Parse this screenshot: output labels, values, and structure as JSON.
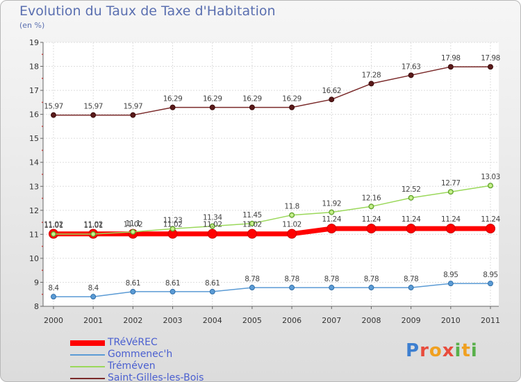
{
  "title": "Evolution du Taux de Taxe d'Habitation",
  "unit_label": "(en %)",
  "logo_text": "Proxiti",
  "chart_data": {
    "type": "line",
    "title": "Evolution du Taux de Taxe d'Habitation",
    "ylabel": "(en %)",
    "xlabel": "",
    "x": [
      "2000",
      "2001",
      "2002",
      "2003",
      "2004",
      "2005",
      "2006",
      "2007",
      "2008",
      "2009",
      "2010",
      "2011"
    ],
    "ylim": [
      8,
      19
    ],
    "yticks": [
      8,
      9,
      10,
      11,
      12,
      13,
      14,
      15,
      16,
      17,
      18,
      19
    ],
    "grid": true,
    "legend_position": "bottom-left",
    "series": [
      {
        "name": "TRéVéREC",
        "color": "#ff0000",
        "values": [
          11.02,
          11.02,
          11.02,
          11.02,
          11.02,
          11.02,
          11.02,
          11.24,
          11.24,
          11.24,
          11.24,
          11.24
        ]
      },
      {
        "name": "Gommenec'h",
        "color": "#5b9bd5",
        "values": [
          8.4,
          8.4,
          8.61,
          8.61,
          8.61,
          8.78,
          8.78,
          8.78,
          8.78,
          8.78,
          8.95,
          8.95
        ]
      },
      {
        "name": "Tréméven",
        "color": "#9ad85a",
        "values": [
          11.01,
          11.01,
          11.1,
          11.23,
          11.34,
          11.45,
          11.8,
          11.92,
          12.16,
          12.52,
          12.77,
          13.03
        ]
      },
      {
        "name": "Saint-Gilles-les-Bois",
        "color": "#7a2a2a",
        "values": [
          15.97,
          15.97,
          15.97,
          16.29,
          16.29,
          16.29,
          16.29,
          16.62,
          17.28,
          17.63,
          17.98,
          17.98
        ]
      }
    ],
    "data_labels": {
      "TRéVéREC": [
        "11.02",
        "11.02",
        "11.02",
        "11.02",
        "11.02",
        "11.02",
        "11.02",
        "11.24",
        "11.24",
        "11.24",
        "11.24",
        "11.24"
      ],
      "Gommenec'h": [
        "8.4",
        "8.4",
        "8.61",
        "8.61",
        "8.61",
        "8.78",
        "8.78",
        "8.78",
        "8.78",
        "8.78",
        "8.95",
        "8.95"
      ],
      "Tréméven": [
        "11.01",
        "11.01",
        "11.1",
        "11.23",
        "11.34",
        "11.45",
        "11.8",
        "11.92",
        "12.16",
        "12.52",
        "12.77",
        "13.03"
      ],
      "Saint-Gilles-les-Bois": [
        "15.97",
        "15.97",
        "15.97",
        "16.29",
        "16.29",
        "16.29",
        "16.29",
        "16.62",
        "17.28",
        "17.63",
        "17.98",
        "17.98"
      ]
    }
  }
}
